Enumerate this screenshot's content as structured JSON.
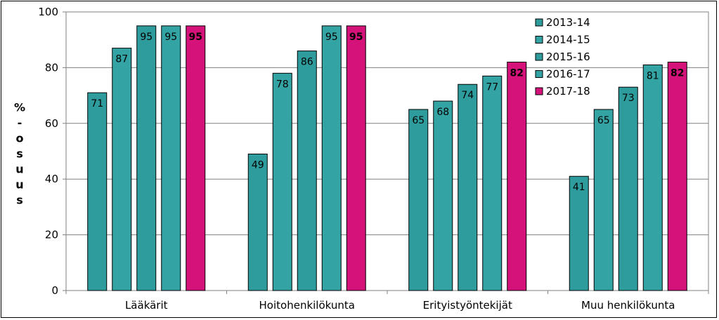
{
  "chart_data": {
    "type": "bar",
    "title": "",
    "ylabel": "%-osuus",
    "xlabel": "",
    "ylim": [
      0,
      100
    ],
    "yticks": [
      0,
      20,
      40,
      60,
      80,
      100
    ],
    "grid": true,
    "legend_position": "top-right",
    "categories": [
      "Lääkärit",
      "Hoitohenkilökunta",
      "Erityistyöntekijät",
      "Muu henkilökunta"
    ],
    "series": [
      {
        "name": "2013-14",
        "color": "#2e9c9c",
        "values": [
          71,
          49,
          65,
          41
        ]
      },
      {
        "name": "2014-15",
        "color": "#34a3a3",
        "values": [
          87,
          78,
          68,
          65
        ]
      },
      {
        "name": "2015-16",
        "color": "#2e9c9c",
        "values": [
          95,
          86,
          74,
          73
        ]
      },
      {
        "name": "2016-17",
        "color": "#34a3a3",
        "values": [
          95,
          95,
          77,
          81
        ]
      },
      {
        "name": "2017-18",
        "color": "#d4127a",
        "values": [
          95,
          95,
          82,
          82
        ],
        "bold_labels": true
      }
    ]
  }
}
